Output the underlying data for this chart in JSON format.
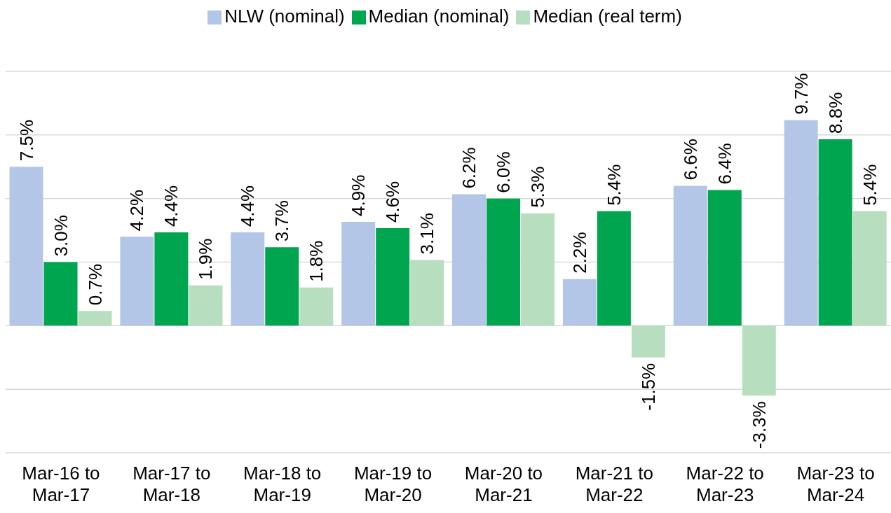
{
  "chart_data": {
    "type": "bar",
    "categories": [
      "Mar-16 to Mar-17",
      "Mar-17 to Mar-18",
      "Mar-18 to Mar-19",
      "Mar-19 to Mar-20",
      "Mar-20 to Mar-21",
      "Mar-21 to Mar-22",
      "Mar-22 to Mar-23",
      "Mar-23 to Mar-24"
    ],
    "series": [
      {
        "name": "NLW (nominal)",
        "color": "#b4c6e7",
        "values": [
          7.5,
          4.2,
          4.4,
          4.9,
          6.2,
          2.2,
          6.6,
          9.7
        ],
        "value_labels": [
          "7.5%",
          "4.2%",
          "4.4%",
          "4.9%",
          "6.2%",
          "2.2%",
          "6.6%",
          "9.7%"
        ]
      },
      {
        "name": "Median (nominal)",
        "color": "#00a550",
        "values": [
          3.0,
          4.4,
          3.7,
          4.6,
          6.0,
          5.4,
          6.4,
          8.8
        ],
        "value_labels": [
          "3.0%",
          "4.4%",
          "3.7%",
          "4.6%",
          "6.0%",
          "5.4%",
          "6.4%",
          "8.8%"
        ]
      },
      {
        "name": "Median (real term)",
        "color": "#b7dfbf",
        "values": [
          0.7,
          1.9,
          1.8,
          3.1,
          5.3,
          -1.5,
          -3.3,
          5.4
        ],
        "value_labels": [
          "0.7%",
          "1.9%",
          "1.8%",
          "3.1%",
          "5.3%",
          "-1.5%",
          "-3.3%",
          "5.4%"
        ]
      }
    ],
    "tick_labels": "x",
    "grid": "y",
    "legend": "top"
  }
}
